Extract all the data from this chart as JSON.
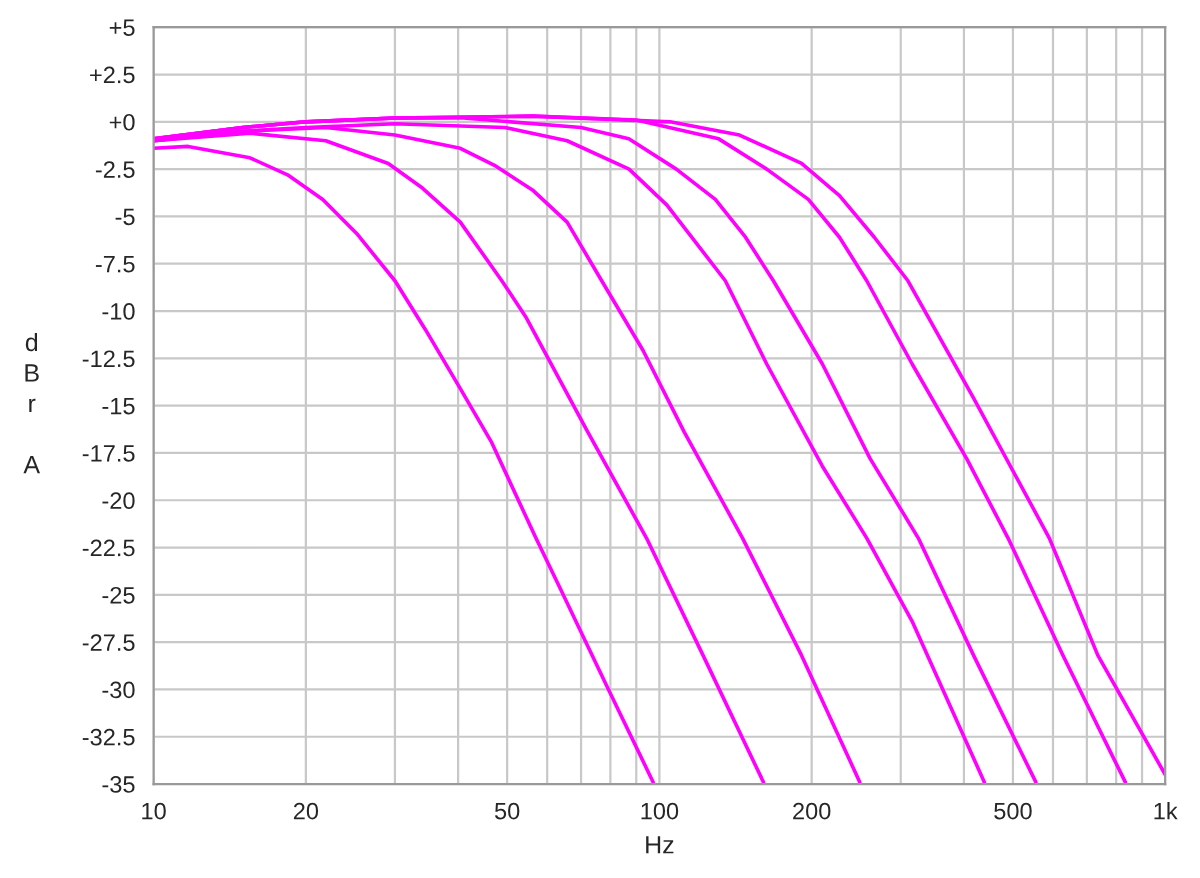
{
  "chart_data": {
    "type": "line",
    "xlabel": "Hz",
    "ylabel": "dBr A",
    "log": "x",
    "grid": true,
    "marker": "none",
    "line_style": "solid",
    "xlim": [
      10,
      1000
    ],
    "ylim": [
      -35,
      5
    ],
    "xticks": [
      10,
      20,
      {
        "value": 30,
        "label": null
      },
      {
        "value": 40,
        "label": null
      },
      50,
      {
        "value": 60,
        "label": null
      },
      {
        "value": 70,
        "label": null
      },
      {
        "value": 80,
        "label": null
      },
      {
        "value": 90,
        "label": null
      },
      100,
      200,
      {
        "value": 300,
        "label": null
      },
      {
        "value": 400,
        "label": null
      },
      500,
      {
        "value": 600,
        "label": null
      },
      {
        "value": 700,
        "label": null
      },
      {
        "value": 800,
        "label": null
      },
      {
        "value": 900,
        "label": null
      },
      {
        "value": 1000,
        "label": "1k"
      }
    ],
    "yticks": [
      {
        "value": 5,
        "label": "+5"
      },
      {
        "value": 2.5,
        "label": "+2.5"
      },
      {
        "value": 0,
        "label": "+0"
      },
      -2.5,
      -5,
      -7.5,
      -10,
      -12.5,
      -15,
      -17.5,
      -20,
      -22.5,
      -25,
      -27.5,
      -30,
      -32.5,
      -35
    ],
    "series": [
      {
        "color": "#ff00ff",
        "x": [
          10,
          11.7,
          15.5,
          18.4,
          21.6,
          25.2,
          30.0,
          34.5,
          40.4,
          46.5,
          57.0,
          64.3,
          79.3,
          97.2
        ],
        "values": [
          -1.4,
          -1.3,
          -1.9,
          -2.8,
          -4.1,
          -5.9,
          -8.4,
          -11.0,
          -14.1,
          -16.9,
          -22.0,
          -24.9,
          -30.0,
          -34.9
        ]
      },
      {
        "color": "#ff00ff",
        "x": [
          10,
          15.5,
          21.9,
          29.1,
          34.0,
          40.4,
          48.8,
          54.4,
          72.2,
          94.3,
          122,
          160.6
        ],
        "values": [
          -1.0,
          -0.6,
          -1.0,
          -2.2,
          -3.5,
          -5.3,
          -8.4,
          -10.3,
          -16.4,
          -22.0,
          -28.2,
          -34.9
        ]
      },
      {
        "color": "#ff00ff",
        "x": [
          10,
          15,
          21.9,
          30.0,
          40.4,
          47.2,
          56.1,
          65.7,
          76.9,
          92.9,
          112,
          146,
          191,
          249
        ],
        "values": [
          -1.0,
          -0.5,
          -0.3,
          -0.7,
          -1.4,
          -2.3,
          -3.6,
          -5.3,
          -8.4,
          -12.1,
          -16.4,
          -22.0,
          -28.2,
          -34.9
        ]
      },
      {
        "color": "#ff00ff",
        "x": [
          10,
          15,
          20,
          30.0,
          49.5,
          65.7,
          87.1,
          103.5,
          135,
          163,
          210,
          257,
          316,
          439
        ],
        "values": [
          -1.0,
          -0.5,
          -0.3,
          -0.1,
          -0.3,
          -1.0,
          -2.5,
          -4.4,
          -8.4,
          -12.8,
          -18.2,
          -22.0,
          -26.4,
          -34.9
        ]
      },
      {
        "color": "#ff00ff",
        "x": [
          10,
          15,
          20,
          30,
          41.0,
          70,
          87,
          108,
          129,
          148,
          168,
          210,
          261,
          325,
          418,
          555
        ],
        "values": [
          -0.9,
          -0.3,
          0,
          0.2,
          0.2,
          -0.3,
          -0.9,
          -2.5,
          -4.1,
          -6.1,
          -8.4,
          -12.8,
          -17.8,
          -22.0,
          -28.2,
          -34.9
        ]
      },
      {
        "color": "#ff00ff",
        "x": [
          10,
          15,
          20,
          30,
          56.1,
          90,
          131,
          163,
          197,
          227,
          257,
          316,
          405,
          489,
          628,
          834
        ],
        "values": [
          -0.9,
          -0.3,
          0,
          0.2,
          0.3,
          0.1,
          -0.9,
          -2.5,
          -4.1,
          -6.1,
          -8.4,
          -12.8,
          -17.8,
          -22.0,
          -28.2,
          -34.9
        ]
      },
      {
        "color": "#ff00ff",
        "x": [
          10,
          15,
          20,
          30,
          56.1,
          105,
          144,
          191,
          227,
          266,
          310,
          418,
          590,
          736,
          1000
        ],
        "values": [
          -0.9,
          -0.3,
          0,
          0.2,
          0.3,
          0.0,
          -0.7,
          -2.2,
          -3.9,
          -6.1,
          -8.4,
          -14.6,
          -22.0,
          -28.2,
          -34.5
        ]
      }
    ]
  }
}
